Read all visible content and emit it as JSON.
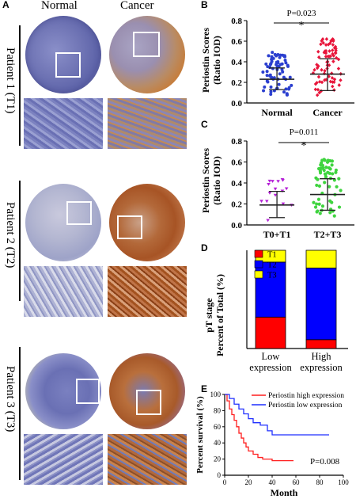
{
  "panel_a": {
    "letter": "A",
    "col_normal": "Normal",
    "col_cancer": "Cancer",
    "patients": [
      "Patient 1 (T1)",
      "Patient 2 (T2)",
      "Patient 3 (T3)"
    ]
  },
  "panel_b": {
    "letter": "B",
    "ylabel_1": "Periostin Scores",
    "ylabel_2": "(Ratio IOD)",
    "pvalue": "P=0.023",
    "star": "*"
  },
  "panel_c": {
    "letter": "C",
    "ylabel_1": "Periostin Scores",
    "ylabel_2": "(Ratio IOD)",
    "pvalue": "P=0.011",
    "star": "*"
  },
  "panel_d": {
    "letter": "D",
    "ylabel_1": "pT stage",
    "ylabel_2": "Percent of Total (%)"
  },
  "panel_e": {
    "letter": "E",
    "pvalue": "P=0.008"
  },
  "chart_data": [
    {
      "id": "B",
      "type": "scatter",
      "categories": [
        "Normal",
        "Cancer"
      ],
      "ylabel": "Periostin Scores (Ratio IOD)",
      "ylim": [
        0,
        0.8
      ],
      "yticks": [
        "0.0",
        "0.2",
        "0.4",
        "0.6",
        "0.8"
      ],
      "series": [
        {
          "name": "Normal",
          "color": "#2b3fcf",
          "mean": 0.23,
          "sd_low": 0.13,
          "sd_high": 0.34
        },
        {
          "name": "Cancer",
          "color": "#e8163b",
          "mean": 0.28,
          "sd_low": 0.12,
          "sd_high": 0.43
        }
      ],
      "annotation": "P=0.023"
    },
    {
      "id": "C",
      "type": "scatter",
      "categories": [
        "T0+T1",
        "T2+T3"
      ],
      "ylabel": "Periostin Scores (Ratio IOD)",
      "ylim": [
        0,
        0.8
      ],
      "yticks": [
        "0.0",
        "0.2",
        "0.4",
        "0.6",
        "0.8"
      ],
      "series": [
        {
          "name": "T0+T1",
          "color": "#b41fd6",
          "mean": 0.19,
          "sd_low": 0.07,
          "sd_high": 0.32
        },
        {
          "name": "T2+T3",
          "color": "#3fd43f",
          "mean": 0.29,
          "sd_low": 0.14,
          "sd_high": 0.44
        }
      ],
      "annotation": "P=0.011"
    },
    {
      "id": "D",
      "type": "bar",
      "categories": [
        [
          "Low",
          "expression"
        ],
        [
          "High",
          "expression"
        ]
      ],
      "ylabel": "pT stage Percent of Total (%)",
      "ylim": [
        0,
        100
      ],
      "stacked": true,
      "series": [
        {
          "name": "T1",
          "color": "#ff0000",
          "values": [
            32,
            9
          ]
        },
        {
          "name": "T2",
          "color": "#0000ff",
          "values": [
            56,
            73
          ]
        },
        {
          "name": "T3",
          "color": "#ffff00",
          "values": [
            12,
            18
          ]
        }
      ],
      "legend": "top-left"
    },
    {
      "id": "E",
      "type": "line",
      "xlabel": "Month",
      "ylabel": "Percent survival (%)",
      "xlim": [
        0,
        100
      ],
      "ylim": [
        0,
        100
      ],
      "xticks": [
        "0",
        "20",
        "40",
        "60",
        "80",
        "100"
      ],
      "yticks": [
        "0",
        "20",
        "40",
        "60",
        "80",
        "100"
      ],
      "series": [
        {
          "name": "Periostin high expression",
          "color": "#ff1f1f",
          "x": [
            0,
            2,
            4,
            6,
            8,
            10,
            12,
            14,
            16,
            18,
            20,
            24,
            28,
            32,
            40,
            58
          ],
          "y": [
            100,
            92,
            82,
            75,
            68,
            60,
            52,
            46,
            40,
            35,
            30,
            26,
            22,
            20,
            18,
            18
          ]
        },
        {
          "name": "Periostin low expression",
          "color": "#1f2fff",
          "x": [
            0,
            4,
            8,
            12,
            16,
            20,
            24,
            30,
            36,
            40,
            88
          ],
          "y": [
            100,
            95,
            88,
            82,
            76,
            70,
            65,
            62,
            55,
            50,
            50
          ]
        }
      ],
      "annotation": "P=0.008"
    }
  ]
}
